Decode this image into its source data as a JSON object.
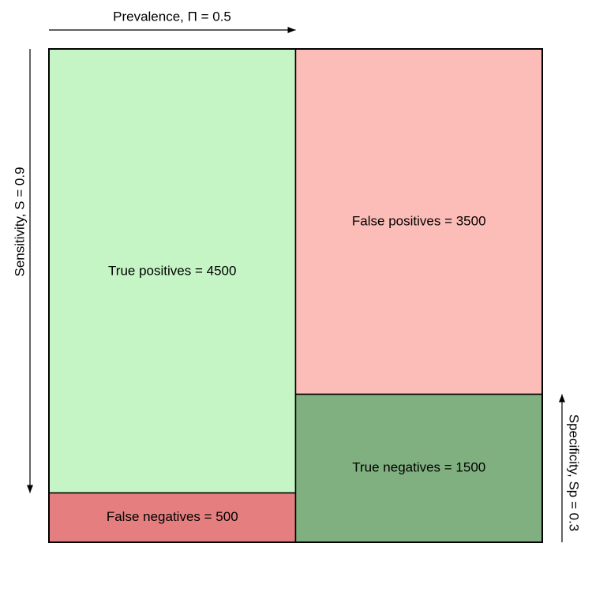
{
  "axes": {
    "prevalence_label": "Prevalence, Π = 0.5",
    "sensitivity_label": "Sensitivity, S = 0.9",
    "specificity_label": "Specificity, Sp = 0.3"
  },
  "parameters": {
    "prevalence": 0.5,
    "sensitivity": 0.9,
    "specificity": 0.3
  },
  "cells": {
    "true_positives": {
      "label": "True positives = 4500",
      "value": 4500,
      "color": "#c5f5c5"
    },
    "false_negatives": {
      "label": "False negatives = 500",
      "value": 500,
      "color": "#e57f7f"
    },
    "false_positives": {
      "label": "False positives = 3500",
      "value": 3500,
      "color": "#fcbdb8"
    },
    "true_negatives": {
      "label": "True negatives = 1500",
      "value": 1500,
      "color": "#80b080"
    }
  },
  "colors": {
    "border": "#000000"
  }
}
